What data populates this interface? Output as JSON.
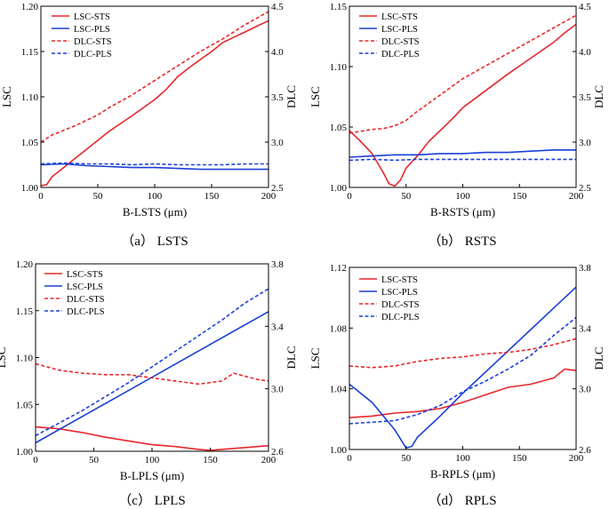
{
  "chart_data": [
    {
      "type": "line",
      "caption": "（a） LSTS",
      "xlabel": "B-LSTS (μm)",
      "ylabel": "LSC",
      "y2label": "DLC",
      "xlim": [
        0,
        200
      ],
      "xticks": [
        "0",
        "50",
        "100",
        "150",
        "200"
      ],
      "ylim": [
        1.0,
        1.2
      ],
      "yticks": [
        "1.00",
        "1.05",
        "1.10",
        "1.15",
        "1.20"
      ],
      "y2lim": [
        2.5,
        4.5
      ],
      "y2ticks": [
        "2.5",
        "3.0",
        "3.5",
        "4.0",
        "4.5"
      ],
      "legend": [
        "LSC-STS",
        "LSC-PLS",
        "DLC-STS",
        "DLC-PLS"
      ],
      "series": [
        {
          "name": "LSC-STS",
          "axis": "left",
          "color": "#e8262b",
          "dash": "solid",
          "x": [
            0,
            5,
            10,
            20,
            30,
            40,
            50,
            60,
            80,
            100,
            110,
            120,
            130,
            140,
            150,
            160,
            170,
            180,
            190,
            200
          ],
          "values": [
            1.002,
            1.003,
            1.012,
            1.022,
            1.032,
            1.042,
            1.052,
            1.062,
            1.079,
            1.097,
            1.108,
            1.122,
            1.132,
            1.141,
            1.15,
            1.16,
            1.166,
            1.172,
            1.178,
            1.184
          ]
        },
        {
          "name": "LSC-PLS",
          "axis": "left",
          "color": "#1a3fd6",
          "dash": "solid",
          "x": [
            0,
            20,
            40,
            60,
            80,
            100,
            120,
            140,
            160,
            180,
            200
          ],
          "values": [
            1.025,
            1.026,
            1.024,
            1.023,
            1.022,
            1.022,
            1.021,
            1.02,
            1.02,
            1.02,
            1.02
          ]
        },
        {
          "name": "DLC-STS",
          "axis": "right",
          "color": "#e8262b",
          "dash": "dashed",
          "x": [
            0,
            10,
            20,
            30,
            40,
            50,
            60,
            80,
            100,
            120,
            140,
            160,
            180,
            200
          ],
          "values": [
            3.0,
            3.08,
            3.13,
            3.18,
            3.24,
            3.3,
            3.38,
            3.52,
            3.68,
            3.84,
            4.0,
            4.14,
            4.3,
            4.44
          ]
        },
        {
          "name": "DLC-PLS",
          "axis": "right",
          "color": "#1a3fd6",
          "dash": "dashed",
          "x": [
            0,
            20,
            40,
            60,
            80,
            100,
            120,
            140,
            160,
            180,
            200
          ],
          "values": [
            2.76,
            2.77,
            2.76,
            2.76,
            2.75,
            2.76,
            2.75,
            2.75,
            2.75,
            2.76,
            2.76
          ]
        }
      ]
    },
    {
      "type": "line",
      "caption": "（b） RSTS",
      "xlabel": "B-RSTS (μm)",
      "ylabel": "LSC",
      "y2label": "DLC",
      "xlim": [
        0,
        200
      ],
      "xticks": [
        "0",
        "50",
        "100",
        "150",
        "200"
      ],
      "ylim": [
        1.0,
        1.15
      ],
      "yticks": [
        "1.00",
        "1.05",
        "1.10",
        "1.15"
      ],
      "y2lim": [
        2.5,
        4.5
      ],
      "y2ticks": [
        "2.5",
        "3.0",
        "3.5",
        "4.0",
        "4.5"
      ],
      "legend": [
        "LSC-STS",
        "LSC-PLS",
        "DLC-STS",
        "DLC-PLS"
      ],
      "series": [
        {
          "name": "LSC-STS",
          "axis": "left",
          "color": "#e8262b",
          "dash": "solid",
          "x": [
            0,
            10,
            20,
            30,
            35,
            40,
            45,
            50,
            60,
            70,
            80,
            90,
            100,
            120,
            140,
            160,
            180,
            190,
            200
          ],
          "values": [
            1.047,
            1.038,
            1.028,
            1.012,
            1.003,
            1.001,
            1.006,
            1.016,
            1.026,
            1.038,
            1.047,
            1.056,
            1.066,
            1.08,
            1.094,
            1.107,
            1.12,
            1.128,
            1.135
          ]
        },
        {
          "name": "LSC-PLS",
          "axis": "left",
          "color": "#1a3fd6",
          "dash": "solid",
          "x": [
            0,
            20,
            40,
            60,
            80,
            100,
            120,
            140,
            160,
            180,
            200
          ],
          "values": [
            1.025,
            1.026,
            1.027,
            1.027,
            1.028,
            1.028,
            1.029,
            1.029,
            1.03,
            1.031,
            1.031
          ]
        },
        {
          "name": "DLC-STS",
          "axis": "right",
          "color": "#e8262b",
          "dash": "dashed",
          "x": [
            0,
            10,
            20,
            30,
            40,
            50,
            60,
            80,
            100,
            120,
            140,
            160,
            180,
            200
          ],
          "values": [
            3.1,
            3.12,
            3.14,
            3.15,
            3.18,
            3.24,
            3.34,
            3.52,
            3.7,
            3.84,
            3.98,
            4.12,
            4.26,
            4.4
          ]
        },
        {
          "name": "DLC-PLS",
          "axis": "right",
          "color": "#1a3fd6",
          "dash": "dashed",
          "x": [
            0,
            20,
            40,
            60,
            80,
            100,
            120,
            140,
            160,
            180,
            200
          ],
          "values": [
            2.8,
            2.81,
            2.8,
            2.81,
            2.81,
            2.81,
            2.81,
            2.81,
            2.81,
            2.81,
            2.81
          ]
        }
      ]
    },
    {
      "type": "line",
      "caption": "（c） LPLS",
      "xlabel": "B-LPLS (μm)",
      "ylabel": "LSC",
      "y2label": "DLC",
      "xlim": [
        0,
        200
      ],
      "xticks": [
        "0",
        "50",
        "100",
        "150",
        "200"
      ],
      "ylim": [
        1.0,
        1.2
      ],
      "yticks": [
        "1.00",
        "1.05",
        "1.10",
        "1.15",
        "1.20"
      ],
      "y2lim": [
        2.6,
        3.8
      ],
      "y2ticks": [
        "2.6",
        "3.0",
        "3.4",
        "3.8"
      ],
      "legend": [
        "LSC-STS",
        "LSC-PLS",
        "DLC-STS",
        "DLC-PLS"
      ],
      "series": [
        {
          "name": "LSC-STS",
          "axis": "left",
          "color": "#e8262b",
          "dash": "solid",
          "x": [
            0,
            20,
            40,
            60,
            80,
            100,
            120,
            140,
            150,
            160,
            180,
            200
          ],
          "values": [
            1.026,
            1.024,
            1.02,
            1.015,
            1.011,
            1.007,
            1.005,
            1.002,
            1.001,
            1.002,
            1.004,
            1.006
          ]
        },
        {
          "name": "LSC-PLS",
          "axis": "left",
          "color": "#1a3fd6",
          "dash": "solid",
          "x": [
            0,
            50,
            100,
            150,
            200
          ],
          "values": [
            1.009,
            1.044,
            1.079,
            1.114,
            1.149
          ]
        },
        {
          "name": "DLC-STS",
          "axis": "right",
          "color": "#e8262b",
          "dash": "dashed",
          "x": [
            0,
            20,
            40,
            60,
            80,
            100,
            120,
            140,
            160,
            170,
            180,
            190,
            200
          ],
          "values": [
            3.16,
            3.12,
            3.1,
            3.09,
            3.09,
            3.07,
            3.05,
            3.03,
            3.05,
            3.1,
            3.08,
            3.06,
            3.05
          ]
        },
        {
          "name": "DLC-PLS",
          "axis": "right",
          "color": "#1a3fd6",
          "dash": "dashed",
          "x": [
            0,
            20,
            40,
            60,
            80,
            100,
            120,
            140,
            160,
            180,
            200
          ],
          "values": [
            2.7,
            2.78,
            2.86,
            2.95,
            3.04,
            3.14,
            3.24,
            3.34,
            3.44,
            3.55,
            3.64
          ]
        }
      ]
    },
    {
      "type": "line",
      "caption": "（d） RPLS",
      "xlabel": "B-RPLS (μm)",
      "ylabel": "LSC",
      "y2label": "DLC",
      "xlim": [
        0,
        200
      ],
      "xticks": [
        "0",
        "50",
        "100",
        "150",
        "200"
      ],
      "ylim": [
        1.0,
        1.12
      ],
      "yticks": [
        "1.00",
        "1.04",
        "1.08",
        "1.12"
      ],
      "y2lim": [
        2.6,
        3.8
      ],
      "y2ticks": [
        "2.6",
        "3.0",
        "3.4",
        "3.8"
      ],
      "legend": [
        "LSC-STS",
        "LSC-PLS",
        "DLC-STS",
        "DLC-PLS"
      ],
      "series": [
        {
          "name": "LSC-STS",
          "axis": "left",
          "color": "#e8262b",
          "dash": "solid",
          "x": [
            0,
            20,
            40,
            60,
            80,
            100,
            120,
            140,
            160,
            180,
            190,
            200
          ],
          "values": [
            1.021,
            1.022,
            1.024,
            1.025,
            1.027,
            1.031,
            1.036,
            1.041,
            1.043,
            1.047,
            1.053,
            1.052
          ]
        },
        {
          "name": "LSC-PLS",
          "axis": "left",
          "color": "#1a3fd6",
          "dash": "solid",
          "x": [
            0,
            20,
            40,
            50,
            55,
            60,
            80,
            100,
            120,
            140,
            160,
            180,
            200
          ],
          "values": [
            1.043,
            1.031,
            1.013,
            1.001,
            1.002,
            1.008,
            1.022,
            1.037,
            1.051,
            1.065,
            1.079,
            1.093,
            1.107
          ]
        },
        {
          "name": "DLC-STS",
          "axis": "right",
          "color": "#e8262b",
          "dash": "dashed",
          "x": [
            0,
            20,
            40,
            60,
            80,
            100,
            120,
            140,
            160,
            180,
            200
          ],
          "values": [
            3.15,
            3.14,
            3.15,
            3.18,
            3.2,
            3.21,
            3.23,
            3.24,
            3.26,
            3.29,
            3.33
          ]
        },
        {
          "name": "DLC-PLS",
          "axis": "right",
          "color": "#1a3fd6",
          "dash": "dashed",
          "x": [
            0,
            20,
            40,
            60,
            80,
            100,
            120,
            140,
            160,
            180,
            200
          ],
          "values": [
            2.77,
            2.78,
            2.79,
            2.83,
            2.89,
            2.98,
            3.05,
            3.13,
            3.22,
            3.35,
            3.47
          ]
        }
      ]
    }
  ]
}
